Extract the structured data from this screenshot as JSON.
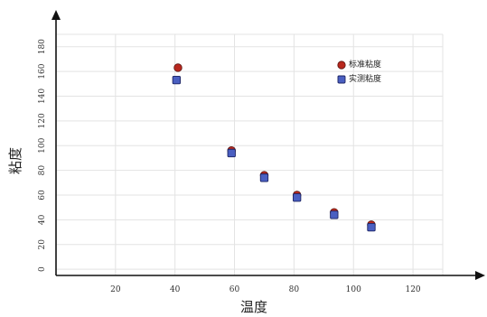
{
  "chart_data": {
    "type": "scatter",
    "xlabel": "温度",
    "ylabel": "粘度",
    "xlim": [
      0,
      130
    ],
    "ylim": [
      -5,
      190
    ],
    "x_ticks": [
      20,
      40,
      60,
      80,
      100,
      120
    ],
    "y_ticks": [
      0,
      20,
      40,
      60,
      80,
      100,
      120,
      140,
      160,
      180
    ],
    "grid": true,
    "legend_position": "top-right",
    "series": [
      {
        "name": "标准粘度",
        "marker": "circle",
        "color": "#b8281e",
        "points": [
          {
            "x": 41,
            "y": 163
          },
          {
            "x": 59,
            "y": 96
          },
          {
            "x": 70,
            "y": 76
          },
          {
            "x": 81,
            "y": 60
          },
          {
            "x": 93.5,
            "y": 46
          },
          {
            "x": 106,
            "y": 36
          }
        ]
      },
      {
        "name": "实测粘度",
        "marker": "square",
        "color": "#4a5fc1",
        "points": [
          {
            "x": 40.5,
            "y": 153
          },
          {
            "x": 59,
            "y": 94
          },
          {
            "x": 70,
            "y": 74
          },
          {
            "x": 81,
            "y": 58
          },
          {
            "x": 93.5,
            "y": 44
          },
          {
            "x": 106,
            "y": 34
          }
        ]
      }
    ]
  }
}
